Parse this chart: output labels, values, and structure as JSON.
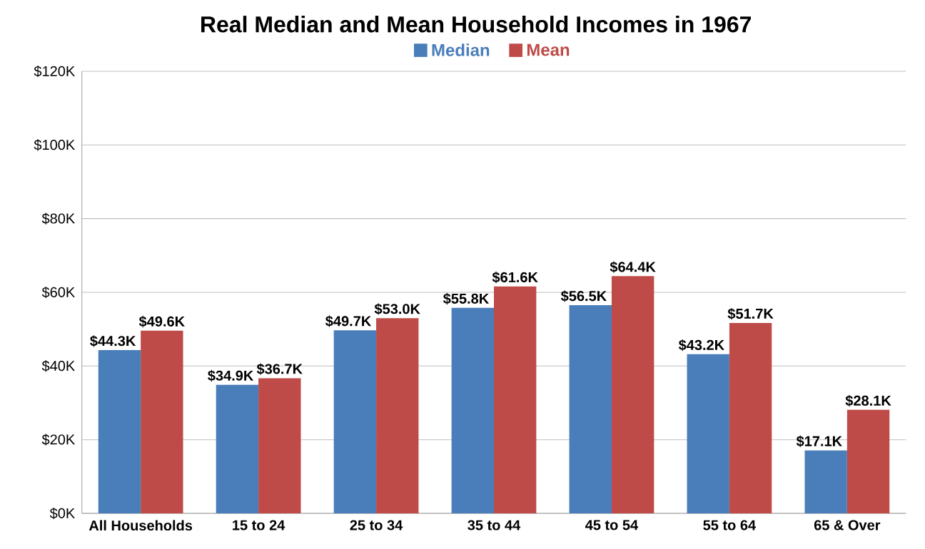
{
  "chart_data": {
    "type": "bar",
    "title": "Real Median and Mean Household Incomes in 1967",
    "categories": [
      "All Households",
      "15 to 24",
      "25 to 34",
      "35 to 44",
      "45 to 54",
      "55 to 64",
      "65 & Over"
    ],
    "series": [
      {
        "name": "Median",
        "color": "#4a7ebb",
        "values": [
          44.3,
          34.9,
          49.7,
          55.8,
          56.5,
          43.2,
          17.1
        ],
        "value_labels": [
          "$44.3K",
          "$34.9K",
          "$49.7K",
          "$55.8K",
          "$56.5K",
          "$43.2K",
          "$17.1K"
        ]
      },
      {
        "name": "Mean",
        "color": "#be4b48",
        "values": [
          49.6,
          36.7,
          53.0,
          61.6,
          64.4,
          51.7,
          28.1
        ],
        "value_labels": [
          "$49.6K",
          "$36.7K",
          "$53.0K",
          "$61.6K",
          "$64.4K",
          "$51.7K",
          "$28.1K"
        ]
      }
    ],
    "ylim": [
      0,
      120
    ],
    "yticks": [
      {
        "value": 0,
        "label": "$0K"
      },
      {
        "value": 20,
        "label": "$20K"
      },
      {
        "value": 40,
        "label": "$40K"
      },
      {
        "value": 60,
        "label": "$60K"
      },
      {
        "value": 80,
        "label": "$80K"
      },
      {
        "value": 100,
        "label": "$100K"
      },
      {
        "value": 120,
        "label": "$120K"
      }
    ],
    "grid": "y",
    "legend": "top"
  }
}
